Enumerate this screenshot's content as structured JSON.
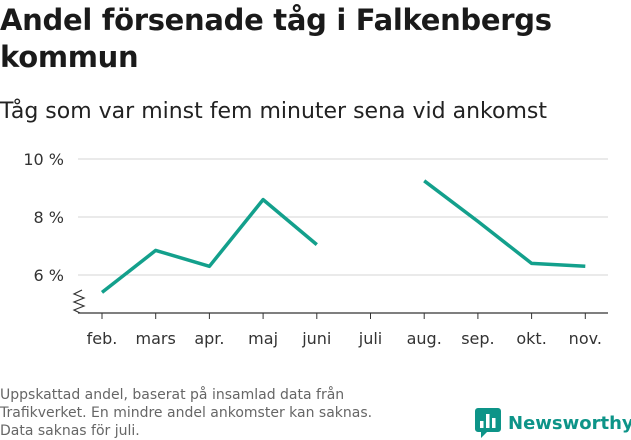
{
  "title": "Andel försenade tåg i Falkenbergs kommun",
  "subtitle": "Tåg som var minst fem minuter sena vid ankomst",
  "notes": [
    "Uppskattad andel, baserat på insamlad data från",
    "Trafikverket. En mindre andel ankomster kan saknas.",
    "Data saknas för juli."
  ],
  "brand": {
    "name": "Newsworthy",
    "color": "#0d9488"
  },
  "chart_data": {
    "type": "line",
    "categories": [
      "feb.",
      "mars",
      "apr.",
      "maj",
      "juni",
      "juli",
      "aug.",
      "sep.",
      "okt.",
      "nov."
    ],
    "series": [
      {
        "values": [
          5.4,
          6.85,
          6.3,
          8.6,
          7.05,
          null,
          9.25,
          7.85,
          6.4,
          6.3
        ],
        "color": "#13a08c"
      }
    ],
    "ytick_labels": [
      "6 %",
      "8 %",
      "10 %"
    ],
    "yticks": [
      6,
      8,
      10
    ],
    "ylim": [
      5,
      10
    ],
    "axis_break": true,
    "grid": true,
    "legend": "none"
  }
}
